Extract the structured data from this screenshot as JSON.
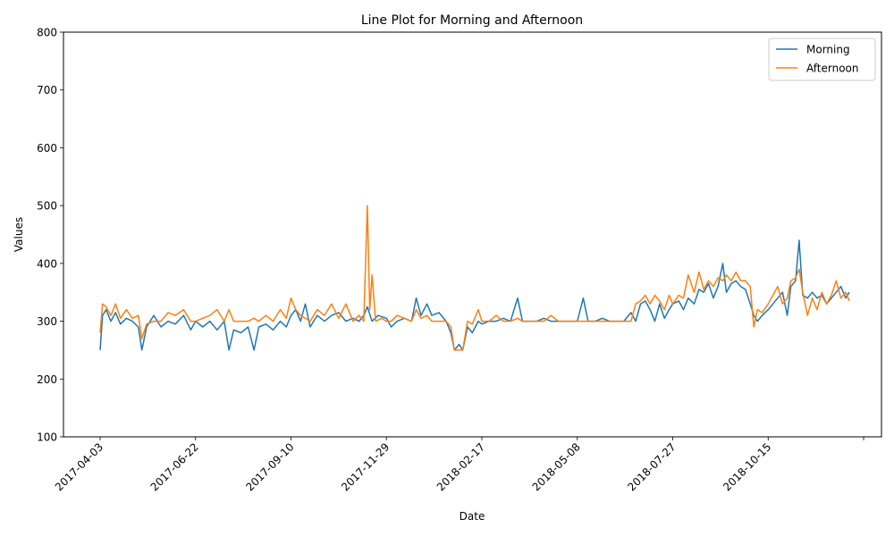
{
  "chart_data": {
    "type": "line",
    "title": "Line Plot for Morning and Afternoon",
    "xlabel": "Date",
    "ylabel": "Values",
    "x_range": [
      "2017-04-03",
      "2019-01-03"
    ],
    "x_ticks": [
      "2017-04-03",
      "2017-06-22",
      "2017-09-10",
      "2017-11-29",
      "2018-02-17",
      "2018-05-08",
      "2018-07-27",
      "2018-10-15",
      "2019-01-03"
    ],
    "x_tick_labels": [
      "2017-04-03",
      "2017-06-22",
      "2017-09-10",
      "2017-11-29",
      "2018-02-17",
      "2018-05-08",
      "2018-07-27",
      "2018-10-15",
      ""
    ],
    "ylim": [
      100,
      800
    ],
    "y_ticks": [
      100,
      200,
      300,
      400,
      500,
      600,
      700,
      800
    ],
    "y_tick_labels": [
      "100",
      "200",
      "300",
      "400",
      "500",
      "600",
      "700",
      "800"
    ],
    "grid": false,
    "legend_position": "top-right",
    "series": [
      {
        "name": "Morning",
        "color": "#1f77b4",
        "points": [
          [
            "2017-04-03",
            250
          ],
          [
            "2017-04-05",
            310
          ],
          [
            "2017-04-08",
            320
          ],
          [
            "2017-04-12",
            300
          ],
          [
            "2017-04-16",
            315
          ],
          [
            "2017-04-20",
            295
          ],
          [
            "2017-04-25",
            305
          ],
          [
            "2017-04-30",
            300
          ],
          [
            "2017-05-05",
            290
          ],
          [
            "2017-05-08",
            250
          ],
          [
            "2017-05-12",
            290
          ],
          [
            "2017-05-18",
            310
          ],
          [
            "2017-05-24",
            290
          ],
          [
            "2017-05-30",
            300
          ],
          [
            "2017-06-05",
            295
          ],
          [
            "2017-06-12",
            310
          ],
          [
            "2017-06-18",
            285
          ],
          [
            "2017-06-22",
            300
          ],
          [
            "2017-06-28",
            290
          ],
          [
            "2017-07-04",
            300
          ],
          [
            "2017-07-10",
            285
          ],
          [
            "2017-07-16",
            300
          ],
          [
            "2017-07-20",
            250
          ],
          [
            "2017-07-24",
            285
          ],
          [
            "2017-07-30",
            280
          ],
          [
            "2017-08-05",
            290
          ],
          [
            "2017-08-10",
            250
          ],
          [
            "2017-08-14",
            290
          ],
          [
            "2017-08-20",
            295
          ],
          [
            "2017-08-26",
            285
          ],
          [
            "2017-09-01",
            300
          ],
          [
            "2017-09-06",
            290
          ],
          [
            "2017-09-10",
            310
          ],
          [
            "2017-09-14",
            320
          ],
          [
            "2017-09-18",
            300
          ],
          [
            "2017-09-22",
            330
          ],
          [
            "2017-09-26",
            290
          ],
          [
            "2017-10-02",
            310
          ],
          [
            "2017-10-08",
            300
          ],
          [
            "2017-10-14",
            310
          ],
          [
            "2017-10-20",
            315
          ],
          [
            "2017-10-26",
            300
          ],
          [
            "2017-11-01",
            305
          ],
          [
            "2017-11-06",
            300
          ],
          [
            "2017-11-10",
            310
          ],
          [
            "2017-11-13",
            325
          ],
          [
            "2017-11-17",
            300
          ],
          [
            "2017-11-22",
            310
          ],
          [
            "2017-11-29",
            305
          ],
          [
            "2017-12-03",
            290
          ],
          [
            "2017-12-08",
            300
          ],
          [
            "2017-12-14",
            305
          ],
          [
            "2017-12-20",
            300
          ],
          [
            "2017-12-24",
            340
          ],
          [
            "2017-12-28",
            310
          ],
          [
            "2018-01-02",
            330
          ],
          [
            "2018-01-06",
            310
          ],
          [
            "2018-01-12",
            315
          ],
          [
            "2018-01-18",
            300
          ],
          [
            "2018-01-22",
            280
          ],
          [
            "2018-01-25",
            250
          ],
          [
            "2018-01-29",
            260
          ],
          [
            "2018-02-01",
            250
          ],
          [
            "2018-02-05",
            290
          ],
          [
            "2018-02-09",
            280
          ],
          [
            "2018-02-14",
            300
          ],
          [
            "2018-02-17",
            295
          ],
          [
            "2018-02-23",
            300
          ],
          [
            "2018-03-01",
            300
          ],
          [
            "2018-03-07",
            305
          ],
          [
            "2018-03-13",
            300
          ],
          [
            "2018-03-19",
            340
          ],
          [
            "2018-03-23",
            300
          ],
          [
            "2018-03-29",
            300
          ],
          [
            "2018-04-04",
            300
          ],
          [
            "2018-04-10",
            305
          ],
          [
            "2018-04-16",
            300
          ],
          [
            "2018-04-22",
            300
          ],
          [
            "2018-04-28",
            300
          ],
          [
            "2018-05-04",
            300
          ],
          [
            "2018-05-08",
            300
          ],
          [
            "2018-05-13",
            340
          ],
          [
            "2018-05-17",
            300
          ],
          [
            "2018-05-23",
            300
          ],
          [
            "2018-05-29",
            305
          ],
          [
            "2018-06-04",
            300
          ],
          [
            "2018-06-10",
            300
          ],
          [
            "2018-06-16",
            300
          ],
          [
            "2018-06-22",
            315
          ],
          [
            "2018-06-26",
            300
          ],
          [
            "2018-06-30",
            330
          ],
          [
            "2018-07-04",
            335
          ],
          [
            "2018-07-08",
            320
          ],
          [
            "2018-07-12",
            300
          ],
          [
            "2018-07-16",
            330
          ],
          [
            "2018-07-20",
            305
          ],
          [
            "2018-07-24",
            320
          ],
          [
            "2018-07-27",
            330
          ],
          [
            "2018-08-01",
            335
          ],
          [
            "2018-08-05",
            320
          ],
          [
            "2018-08-09",
            340
          ],
          [
            "2018-08-14",
            330
          ],
          [
            "2018-08-18",
            355
          ],
          [
            "2018-08-22",
            350
          ],
          [
            "2018-08-26",
            365
          ],
          [
            "2018-08-30",
            340
          ],
          [
            "2018-09-03",
            360
          ],
          [
            "2018-09-07",
            400
          ],
          [
            "2018-09-10",
            350
          ],
          [
            "2018-09-14",
            365
          ],
          [
            "2018-09-18",
            370
          ],
          [
            "2018-09-22",
            360
          ],
          [
            "2018-09-26",
            355
          ],
          [
            "2018-09-30",
            330
          ],
          [
            "2018-10-03",
            310
          ],
          [
            "2018-10-06",
            300
          ],
          [
            "2018-10-10",
            310
          ],
          [
            "2018-10-15",
            320
          ],
          [
            "2018-10-19",
            330
          ],
          [
            "2018-10-23",
            340
          ],
          [
            "2018-10-27",
            350
          ],
          [
            "2018-10-31",
            310
          ],
          [
            "2018-11-03",
            360
          ],
          [
            "2018-11-07",
            370
          ],
          [
            "2018-11-10",
            440
          ],
          [
            "2018-11-13",
            345
          ],
          [
            "2018-11-17",
            340
          ],
          [
            "2018-11-21",
            350
          ],
          [
            "2018-11-25",
            340
          ],
          [
            "2018-11-29",
            345
          ],
          [
            "2018-12-03",
            330
          ],
          [
            "2018-12-07",
            340
          ],
          [
            "2018-12-11",
            350
          ],
          [
            "2018-12-15",
            360
          ],
          [
            "2018-12-19",
            340
          ],
          [
            "2018-12-22",
            350
          ]
        ]
      },
      {
        "name": "Afternoon",
        "color": "#ff7f0e",
        "points": [
          [
            "2017-04-03",
            280
          ],
          [
            "2017-04-05",
            330
          ],
          [
            "2017-04-08",
            325
          ],
          [
            "2017-04-12",
            310
          ],
          [
            "2017-04-16",
            330
          ],
          [
            "2017-04-20",
            305
          ],
          [
            "2017-04-25",
            320
          ],
          [
            "2017-04-30",
            305
          ],
          [
            "2017-05-05",
            310
          ],
          [
            "2017-05-08",
            270
          ],
          [
            "2017-05-12",
            295
          ],
          [
            "2017-05-18",
            300
          ],
          [
            "2017-05-24",
            300
          ],
          [
            "2017-05-30",
            315
          ],
          [
            "2017-06-05",
            310
          ],
          [
            "2017-06-12",
            320
          ],
          [
            "2017-06-18",
            300
          ],
          [
            "2017-06-22",
            300
          ],
          [
            "2017-06-28",
            305
          ],
          [
            "2017-07-04",
            310
          ],
          [
            "2017-07-10",
            320
          ],
          [
            "2017-07-16",
            300
          ],
          [
            "2017-07-20",
            320
          ],
          [
            "2017-07-24",
            300
          ],
          [
            "2017-07-30",
            300
          ],
          [
            "2017-08-05",
            300
          ],
          [
            "2017-08-10",
            305
          ],
          [
            "2017-08-14",
            300
          ],
          [
            "2017-08-20",
            310
          ],
          [
            "2017-08-26",
            300
          ],
          [
            "2017-09-01",
            320
          ],
          [
            "2017-09-06",
            305
          ],
          [
            "2017-09-10",
            340
          ],
          [
            "2017-09-14",
            320
          ],
          [
            "2017-09-18",
            310
          ],
          [
            "2017-09-22",
            305
          ],
          [
            "2017-09-26",
            300
          ],
          [
            "2017-10-02",
            320
          ],
          [
            "2017-10-08",
            310
          ],
          [
            "2017-10-14",
            330
          ],
          [
            "2017-10-20",
            305
          ],
          [
            "2017-10-26",
            330
          ],
          [
            "2017-11-01",
            300
          ],
          [
            "2017-11-06",
            310
          ],
          [
            "2017-11-10",
            300
          ],
          [
            "2017-11-13",
            500
          ],
          [
            "2017-11-15",
            320
          ],
          [
            "2017-11-17",
            380
          ],
          [
            "2017-11-20",
            300
          ],
          [
            "2017-11-25",
            305
          ],
          [
            "2017-11-29",
            300
          ],
          [
            "2017-12-03",
            300
          ],
          [
            "2017-12-08",
            310
          ],
          [
            "2017-12-14",
            305
          ],
          [
            "2017-12-20",
            300
          ],
          [
            "2017-12-24",
            320
          ],
          [
            "2017-12-28",
            305
          ],
          [
            "2018-01-02",
            310
          ],
          [
            "2018-01-06",
            300
          ],
          [
            "2018-01-12",
            300
          ],
          [
            "2018-01-18",
            300
          ],
          [
            "2018-01-22",
            290
          ],
          [
            "2018-01-25",
            250
          ],
          [
            "2018-01-29",
            250
          ],
          [
            "2018-02-01",
            250
          ],
          [
            "2018-02-05",
            300
          ],
          [
            "2018-02-09",
            295
          ],
          [
            "2018-02-14",
            320
          ],
          [
            "2018-02-17",
            300
          ],
          [
            "2018-02-23",
            300
          ],
          [
            "2018-03-01",
            310
          ],
          [
            "2018-03-07",
            300
          ],
          [
            "2018-03-13",
            300
          ],
          [
            "2018-03-19",
            305
          ],
          [
            "2018-03-23",
            300
          ],
          [
            "2018-03-29",
            300
          ],
          [
            "2018-04-04",
            300
          ],
          [
            "2018-04-10",
            300
          ],
          [
            "2018-04-16",
            310
          ],
          [
            "2018-04-22",
            300
          ],
          [
            "2018-04-28",
            300
          ],
          [
            "2018-05-04",
            300
          ],
          [
            "2018-05-08",
            300
          ],
          [
            "2018-05-13",
            300
          ],
          [
            "2018-05-17",
            300
          ],
          [
            "2018-05-23",
            300
          ],
          [
            "2018-05-29",
            300
          ],
          [
            "2018-06-04",
            300
          ],
          [
            "2018-06-10",
            300
          ],
          [
            "2018-06-16",
            300
          ],
          [
            "2018-06-22",
            300
          ],
          [
            "2018-06-26",
            330
          ],
          [
            "2018-06-30",
            335
          ],
          [
            "2018-07-04",
            345
          ],
          [
            "2018-07-08",
            330
          ],
          [
            "2018-07-12",
            345
          ],
          [
            "2018-07-16",
            335
          ],
          [
            "2018-07-20",
            320
          ],
          [
            "2018-07-24",
            345
          ],
          [
            "2018-07-27",
            330
          ],
          [
            "2018-08-01",
            345
          ],
          [
            "2018-08-05",
            340
          ],
          [
            "2018-08-09",
            380
          ],
          [
            "2018-08-14",
            350
          ],
          [
            "2018-08-18",
            385
          ],
          [
            "2018-08-22",
            355
          ],
          [
            "2018-08-26",
            370
          ],
          [
            "2018-08-30",
            360
          ],
          [
            "2018-09-03",
            375
          ],
          [
            "2018-09-07",
            370
          ],
          [
            "2018-09-10",
            380
          ],
          [
            "2018-09-14",
            370
          ],
          [
            "2018-09-18",
            385
          ],
          [
            "2018-09-22",
            370
          ],
          [
            "2018-09-26",
            370
          ],
          [
            "2018-09-30",
            360
          ],
          [
            "2018-10-03",
            290
          ],
          [
            "2018-10-06",
            320
          ],
          [
            "2018-10-10",
            315
          ],
          [
            "2018-10-15",
            330
          ],
          [
            "2018-10-19",
            345
          ],
          [
            "2018-10-23",
            360
          ],
          [
            "2018-10-27",
            330
          ],
          [
            "2018-10-31",
            340
          ],
          [
            "2018-11-03",
            370
          ],
          [
            "2018-11-07",
            375
          ],
          [
            "2018-11-10",
            390
          ],
          [
            "2018-11-13",
            350
          ],
          [
            "2018-11-17",
            310
          ],
          [
            "2018-11-21",
            340
          ],
          [
            "2018-11-25",
            320
          ],
          [
            "2018-11-29",
            350
          ],
          [
            "2018-12-03",
            330
          ],
          [
            "2018-12-07",
            345
          ],
          [
            "2018-12-11",
            370
          ],
          [
            "2018-12-15",
            340
          ],
          [
            "2018-12-19",
            350
          ],
          [
            "2018-12-22",
            335
          ]
        ]
      }
    ]
  }
}
